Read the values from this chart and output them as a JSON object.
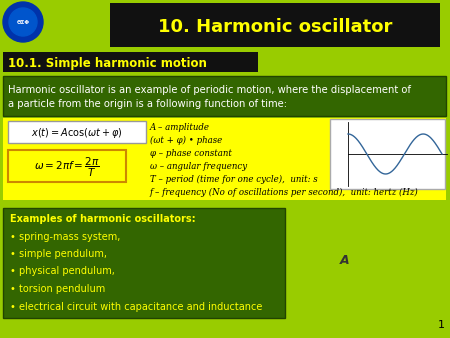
{
  "bg_color": "#99cc00",
  "title_text": "10. Harmonic oscillator",
  "title_bg": "#111111",
  "title_color": "#ffff00",
  "section_text": "10.1. Simple harmonic motion",
  "section_bg": "#111111",
  "section_color": "#ffff00",
  "intro_text": "Harmonic oscillator is an example of periodic motion, where the displacement of\na particle from the origin is a following function of time:",
  "intro_bg": "#336600",
  "intro_color": "#ffffff",
  "yellow_box_bg": "#ffff00",
  "yellow_box_text_lines": [
    "A – amplitude",
    "(ωt + φ) • phase",
    "φ – phase constant",
    "ω – angular frequency",
    "T – period (time for one cycle),  unit: s",
    "f – frequency (No of oscillations per second),  unit: hertz (Hz)"
  ],
  "examples_bg": "#336600",
  "examples_color": "#ffff00",
  "examples_lines": [
    "Examples of harmonic oscillators:",
    "• spring-mass system,",
    "• simple pendulum,",
    "• physical pendulum,",
    "• torsion pendulum",
    "• electrical circuit with capacitance and inductance"
  ],
  "page_number": "1",
  "A_label_color": "#333333",
  "logo_bg": "#0033aa",
  "wave_color": "#336699"
}
